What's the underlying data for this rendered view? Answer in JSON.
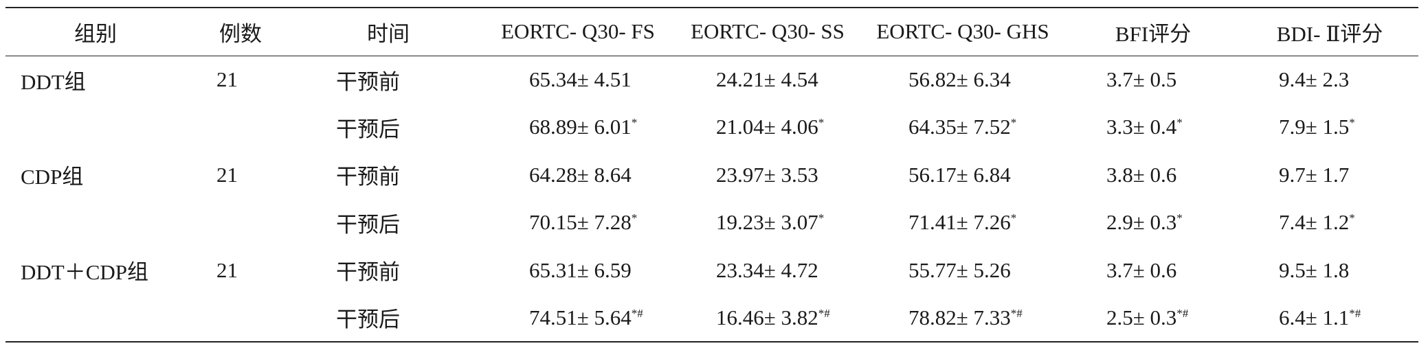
{
  "table": {
    "headers": [
      "组别",
      "例数",
      "时间",
      "EORTC- Q30- FS",
      "EORTC- Q30- SS",
      "EORTC- Q30- GHS",
      "BFI评分",
      "BDI- Ⅱ评分"
    ],
    "groups": [
      {
        "name": "DDT组",
        "n": "21",
        "rows": [
          {
            "time": "干预前",
            "fs": "65.34± 4.51",
            "fs_mark": "",
            "ss": "24.21± 4.54",
            "ss_mark": "",
            "ghs": "56.82± 6.34",
            "ghs_mark": "",
            "bfi": "3.7± 0.5",
            "bfi_mark": "",
            "bdi": "9.4± 2.3",
            "bdi_mark": ""
          },
          {
            "time": "干预后",
            "fs": "68.89± 6.01",
            "fs_mark": "*",
            "ss": "21.04± 4.06",
            "ss_mark": "*",
            "ghs": "64.35± 7.52",
            "ghs_mark": "*",
            "bfi": "3.3± 0.4",
            "bfi_mark": "*",
            "bdi": "7.9± 1.5",
            "bdi_mark": "*"
          }
        ]
      },
      {
        "name": "CDP组",
        "n": "21",
        "rows": [
          {
            "time": "干预前",
            "fs": "64.28± 8.64",
            "fs_mark": "",
            "ss": "23.97± 3.53",
            "ss_mark": "",
            "ghs": "56.17± 6.84",
            "ghs_mark": "",
            "bfi": "3.8± 0.6",
            "bfi_mark": "",
            "bdi": "9.7± 1.7",
            "bdi_mark": ""
          },
          {
            "time": "干预后",
            "fs": "70.15± 7.28",
            "fs_mark": "*",
            "ss": "19.23± 3.07",
            "ss_mark": "*",
            "ghs": "71.41± 7.26",
            "ghs_mark": "*",
            "bfi": "2.9± 0.3",
            "bfi_mark": "*",
            "bdi": "7.4± 1.2",
            "bdi_mark": "*"
          }
        ]
      },
      {
        "name": "DDT＋CDP组",
        "n": "21",
        "rows": [
          {
            "time": "干预前",
            "fs": "65.31± 6.59",
            "fs_mark": "",
            "ss": "23.34± 4.72",
            "ss_mark": "",
            "ghs": "55.77± 5.26",
            "ghs_mark": "",
            "bfi": "3.7± 0.6",
            "bfi_mark": "",
            "bdi": "9.5± 1.8",
            "bdi_mark": ""
          },
          {
            "time": "干预后",
            "fs": "74.51± 5.64",
            "fs_mark": "*#",
            "ss": "16.46± 3.82",
            "ss_mark": "*#",
            "ghs": "78.82± 7.33",
            "ghs_mark": "*#",
            "bfi": "2.5± 0.3",
            "bfi_mark": "*#",
            "bdi": "6.4± 1.1",
            "bdi_mark": "*#"
          }
        ]
      }
    ]
  }
}
